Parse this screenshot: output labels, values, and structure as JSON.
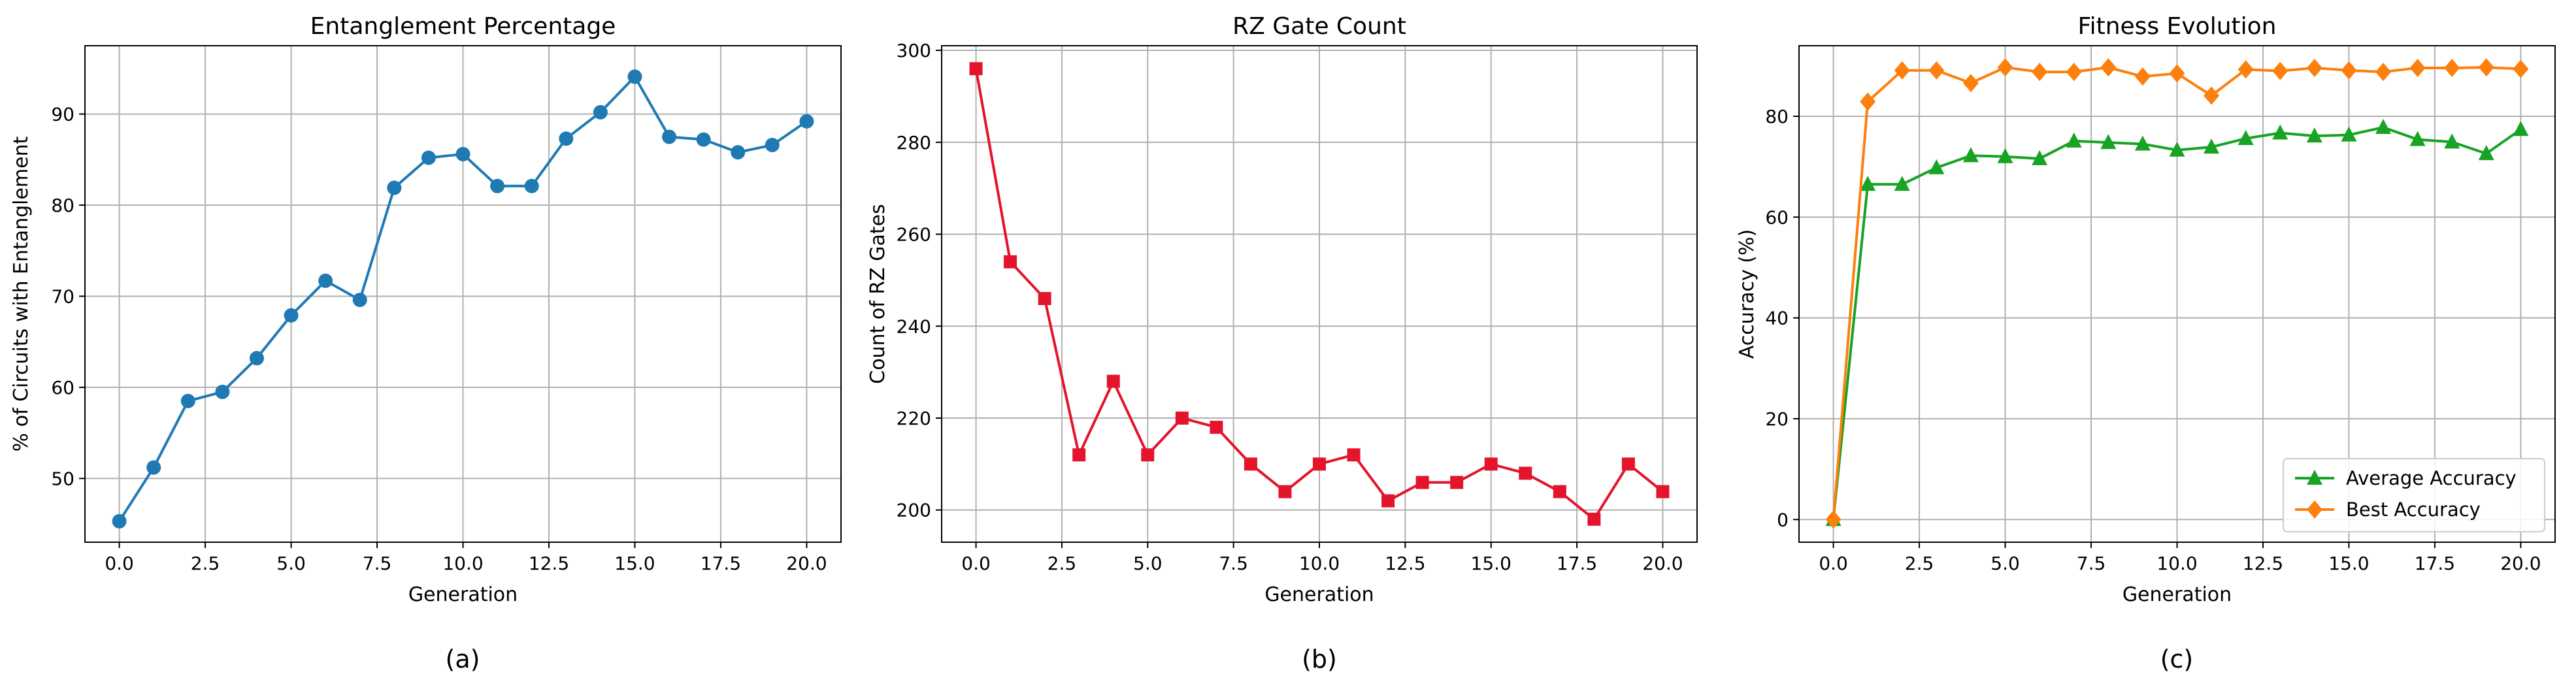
{
  "chart_data": [
    {
      "type": "line",
      "title": "Entanglement Percentage",
      "xlabel": "Generation",
      "ylabel": "% of Circuits with Entanglement",
      "caption": "(a)",
      "xlim": [
        -1,
        21
      ],
      "ylim": [
        43,
        97.5
      ],
      "xticks": [
        0,
        2.5,
        5,
        7.5,
        10,
        12.5,
        15,
        17.5,
        20
      ],
      "xtick_labels": [
        "0.0",
        "2.5",
        "5.0",
        "7.5",
        "10.0",
        "12.5",
        "15.0",
        "17.5",
        "20.0"
      ],
      "yticks": [
        50,
        60,
        70,
        80,
        90
      ],
      "ytick_labels": [
        "50",
        "60",
        "70",
        "80",
        "90"
      ],
      "grid": true,
      "series": [
        {
          "color": "#1f7ab4",
          "marker": "circle",
          "x": [
            0,
            1,
            2,
            3,
            4,
            5,
            6,
            7,
            8,
            9,
            10,
            11,
            12,
            13,
            14,
            15,
            16,
            17,
            18,
            19,
            20
          ],
          "values": [
            45.3,
            51.2,
            58.5,
            59.5,
            63.2,
            67.9,
            71.7,
            69.6,
            81.9,
            85.2,
            85.6,
            82.1,
            82.1,
            87.3,
            90.2,
            94.1,
            87.5,
            87.2,
            85.8,
            86.6,
            89.2
          ]
        }
      ]
    },
    {
      "type": "line",
      "title": "RZ Gate Count",
      "xlabel": "Generation",
      "ylabel": "Count of RZ Gates",
      "caption": "(b)",
      "xlim": [
        -1,
        21
      ],
      "ylim": [
        193,
        301
      ],
      "xticks": [
        0,
        2.5,
        5,
        7.5,
        10,
        12.5,
        15,
        17.5,
        20
      ],
      "xtick_labels": [
        "0.0",
        "2.5",
        "5.0",
        "7.5",
        "10.0",
        "12.5",
        "15.0",
        "17.5",
        "20.0"
      ],
      "yticks": [
        200,
        220,
        240,
        260,
        280,
        300
      ],
      "ytick_labels": [
        "200",
        "220",
        "240",
        "260",
        "280",
        "300"
      ],
      "grid": true,
      "series": [
        {
          "color": "#e3142b",
          "marker": "square",
          "x": [
            0,
            1,
            2,
            3,
            4,
            5,
            6,
            7,
            8,
            9,
            10,
            11,
            12,
            13,
            14,
            15,
            16,
            17,
            18,
            19,
            20
          ],
          "values": [
            296,
            254,
            246,
            212,
            228,
            212,
            220,
            218,
            210,
            204,
            210,
            212,
            202,
            206,
            206,
            210,
            208,
            204,
            198,
            210,
            204
          ]
        }
      ]
    },
    {
      "type": "line",
      "title": "Fitness Evolution",
      "xlabel": "Generation",
      "ylabel": "Accuracy (%)",
      "caption": "(c)",
      "xlim": [
        -1,
        21
      ],
      "ylim": [
        -4.5,
        94
      ],
      "xticks": [
        0,
        2.5,
        5,
        7.5,
        10,
        12.5,
        15,
        17.5,
        20
      ],
      "xtick_labels": [
        "0.0",
        "2.5",
        "5.0",
        "7.5",
        "10.0",
        "12.5",
        "15.0",
        "17.5",
        "20.0"
      ],
      "yticks": [
        0,
        20,
        40,
        60,
        80
      ],
      "ytick_labels": [
        "0",
        "20",
        "40",
        "60",
        "80"
      ],
      "grid": true,
      "legend": "lower-right",
      "series": [
        {
          "name": "Average Accuracy",
          "color": "#17a323",
          "marker": "triangle",
          "x": [
            0,
            1,
            2,
            3,
            4,
            5,
            6,
            7,
            8,
            9,
            10,
            11,
            12,
            13,
            14,
            15,
            16,
            17,
            18,
            19,
            20
          ],
          "values": [
            0,
            66.5,
            66.5,
            69.8,
            72.2,
            72,
            71.6,
            75.1,
            74.8,
            74.5,
            73.3,
            73.9,
            75.6,
            76.7,
            76.1,
            76.3,
            77.8,
            75.4,
            74.9,
            72.6,
            77.4
          ]
        },
        {
          "name": "Best Accuracy",
          "color": "#fd7f0e",
          "marker": "diamond",
          "x": [
            0,
            1,
            2,
            3,
            4,
            5,
            6,
            7,
            8,
            9,
            10,
            11,
            12,
            13,
            14,
            15,
            16,
            17,
            18,
            19,
            20
          ],
          "values": [
            0,
            82.9,
            89.1,
            89.1,
            86.6,
            89.7,
            88.8,
            88.8,
            89.7,
            87.9,
            88.5,
            84.1,
            89.3,
            89,
            89.6,
            89.1,
            88.8,
            89.6,
            89.6,
            89.7,
            89.4
          ]
        }
      ]
    }
  ]
}
